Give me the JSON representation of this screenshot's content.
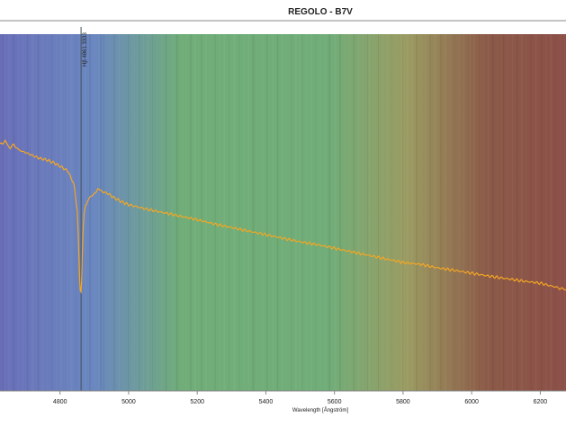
{
  "chart_data": {
    "type": "line",
    "title": "REGOLO - B7V",
    "xlabel": "Wavelength [Ångström]",
    "ylabel": "",
    "xlim": [
      4625,
      6275
    ],
    "ylim": [
      0,
      1
    ],
    "x_ticks": [
      4800,
      5000,
      5200,
      5400,
      5600,
      5800,
      6000,
      6200
    ],
    "grid": false,
    "background": "visible spectrum color band",
    "series": [
      {
        "name": "spectrum",
        "color": "#f5a623",
        "x": [
          4625,
          4640,
          4655,
          4665,
          4680,
          4700,
          4720,
          4740,
          4760,
          4780,
          4800,
          4820,
          4830,
          4840,
          4845,
          4850,
          4853,
          4855,
          4857,
          4859,
          4861,
          4863,
          4865,
          4867,
          4870,
          4875,
          4880,
          4890,
          4900,
          4910,
          4920,
          4940,
          4960,
          4980,
          5000,
          5050,
          5100,
          5150,
          5200,
          5250,
          5300,
          5350,
          5400,
          5450,
          5500,
          5550,
          5600,
          5650,
          5700,
          5750,
          5800,
          5850,
          5900,
          5950,
          6000,
          6050,
          6100,
          6150,
          6200,
          6250,
          6275
        ],
        "y": [
          0.69,
          0.7,
          0.68,
          0.69,
          0.675,
          0.668,
          0.66,
          0.652,
          0.648,
          0.64,
          0.63,
          0.618,
          0.605,
          0.58,
          0.55,
          0.5,
          0.44,
          0.38,
          0.32,
          0.285,
          0.275,
          0.31,
          0.38,
          0.45,
          0.5,
          0.52,
          0.53,
          0.545,
          0.555,
          0.565,
          0.56,
          0.553,
          0.54,
          0.53,
          0.522,
          0.51,
          0.5,
          0.49,
          0.48,
          0.468,
          0.458,
          0.448,
          0.438,
          0.428,
          0.418,
          0.41,
          0.4,
          0.39,
          0.38,
          0.37,
          0.36,
          0.355,
          0.345,
          0.338,
          0.33,
          0.322,
          0.315,
          0.308,
          0.302,
          0.29,
          0.283
        ]
      }
    ],
    "annotations": [
      {
        "text": "Hβ 4861.3333",
        "x": 4861.3333
      }
    ]
  },
  "colors": {
    "line": "#f5a623",
    "marker_line": "#44505a",
    "axis": "#888888",
    "band_violet": "#6a6fb8",
    "band_blue": "#6a88c0",
    "band_green": "#70ad78",
    "band_olive": "#9b9b62",
    "band_brown": "#8c5a48",
    "band_red": "#8c5048"
  }
}
